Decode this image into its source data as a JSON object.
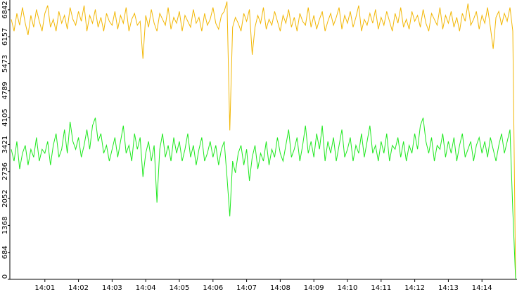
{
  "chart_data": {
    "type": "line",
    "categories": [
      null,
      null,
      null,
      null,
      null,
      null,
      null,
      null,
      null,
      null,
      null,
      null,
      "14:01",
      null,
      null,
      null,
      null,
      null,
      null,
      null,
      null,
      null,
      null,
      null,
      "14:02",
      null,
      null,
      null,
      null,
      null,
      null,
      null,
      null,
      null,
      null,
      null,
      "14:03",
      null,
      null,
      null,
      null,
      null,
      null,
      null,
      null,
      null,
      null,
      null,
      "14:04",
      null,
      null,
      null,
      null,
      null,
      null,
      null,
      null,
      null,
      null,
      null,
      "14:05",
      null,
      null,
      null,
      null,
      null,
      null,
      null,
      null,
      null,
      null,
      null,
      "14:06",
      null,
      null,
      null,
      null,
      null,
      null,
      null,
      null,
      null,
      null,
      null,
      "14:07",
      null,
      null,
      null,
      null,
      null,
      null,
      null,
      null,
      null,
      null,
      null,
      "14:08",
      null,
      null,
      null,
      null,
      null,
      null,
      null,
      null,
      null,
      null,
      null,
      "14:09",
      null,
      null,
      null,
      null,
      null,
      null,
      null,
      null,
      null,
      null,
      null,
      "14:10",
      null,
      null,
      null,
      null,
      null,
      null,
      null,
      null,
      null,
      null,
      null,
      "14:11",
      null,
      null,
      null,
      null,
      null,
      null,
      null,
      null,
      null,
      null,
      null,
      "14:12",
      null,
      null,
      null,
      null,
      null,
      null,
      null,
      null,
      null,
      null,
      null,
      "14:13",
      null,
      null,
      null,
      null,
      null,
      null,
      null,
      null,
      null,
      null,
      null,
      "14:14",
      null,
      null,
      null,
      null,
      null,
      null,
      null,
      null,
      null,
      null,
      null,
      null
    ],
    "series": [
      {
        "color": "#f2b705",
        "values": [
          6600,
          6300,
          6750,
          6450,
          6900,
          6500,
          6200,
          6700,
          6400,
          6850,
          6550,
          6300,
          6750,
          6950,
          6400,
          6600,
          6300,
          6800,
          6500,
          6700,
          6350,
          6900,
          6600,
          6450,
          6800,
          6550,
          6950,
          6300,
          6700,
          6500,
          6850,
          6400,
          6650,
          6300,
          6750,
          6550,
          6450,
          6800,
          6350,
          6700,
          6500,
          6900,
          6300,
          6600,
          6750,
          6450,
          6550,
          5600,
          6700,
          6400,
          6850,
          6500,
          6300,
          6750,
          6600,
          6450,
          6900,
          6350,
          6650,
          6500,
          6800,
          6300,
          6700,
          6550,
          6400,
          6850,
          6500,
          6650,
          6300,
          6750,
          6450,
          6600,
          6900,
          6500,
          6350,
          6700,
          6800,
          7050,
          3780,
          6400,
          6650,
          6500,
          6300,
          6750,
          6550,
          6850,
          5700,
          6400,
          6700,
          6500,
          6900,
          6350,
          6600,
          6450,
          6800,
          6550,
          6300,
          6700,
          6500,
          6850,
          6400,
          6650,
          6300,
          6750,
          6550,
          6450,
          6900,
          6400,
          6700,
          6350,
          6600,
          6800,
          6300,
          6550,
          6750,
          6450,
          6650,
          6900,
          6350,
          6700,
          6500,
          6800,
          6400,
          6650,
          6950,
          6300,
          6600,
          6450,
          6750,
          6500,
          6850,
          6350,
          6650,
          6450,
          6800,
          6550,
          6300,
          6750,
          6500,
          6900,
          6400,
          6600,
          6350,
          6800,
          6550,
          6700,
          6400,
          6850,
          6500,
          6300,
          6750,
          6600,
          6450,
          6900,
          6350,
          6700,
          6500,
          6800,
          6400,
          6650,
          6300,
          6750,
          6550,
          7000,
          6450,
          6600,
          6800,
          6350,
          6700,
          6500,
          6900,
          6400,
          5850,
          6650,
          6800,
          6450,
          6750,
          6550,
          6900,
          6300,
          0
        ]
      },
      {
        "color": "#1ee81e",
        "values": [
          3300,
          3000,
          3500,
          2800,
          3200,
          3400,
          2900,
          3300,
          3100,
          3600,
          3000,
          3300,
          3200,
          3500,
          2900,
          3400,
          3700,
          3100,
          3300,
          3800,
          3200,
          4000,
          3500,
          3300,
          3600,
          3100,
          3400,
          3800,
          3300,
          3900,
          4100,
          3500,
          3700,
          3200,
          3400,
          3000,
          3300,
          3600,
          3100,
          3500,
          3900,
          3200,
          3400,
          3000,
          3700,
          3300,
          3600,
          2600,
          3200,
          3500,
          3000,
          3400,
          1950,
          3300,
          3700,
          3100,
          3400,
          3000,
          3600,
          3200,
          3500,
          3000,
          3300,
          3700,
          3100,
          3400,
          2900,
          3300,
          3600,
          3000,
          3200,
          3500,
          3100,
          3400,
          2900,
          3300,
          3500,
          2600,
          1600,
          3000,
          2700,
          3200,
          3400,
          2900,
          3300,
          2500,
          3100,
          3400,
          2800,
          3200,
          3000,
          3500,
          2900,
          3300,
          3100,
          3600,
          3200,
          3000,
          3400,
          3800,
          3100,
          3300,
          3600,
          3000,
          3400,
          3900,
          3200,
          3500,
          3100,
          3700,
          3300,
          3900,
          3000,
          3500,
          3200,
          3600,
          3000,
          3400,
          3800,
          3100,
          3300,
          3600,
          3000,
          3400,
          3200,
          3700,
          3100,
          3500,
          3900,
          3200,
          3400,
          3000,
          3500,
          3200,
          3700,
          3000,
          3400,
          3300,
          3600,
          3100,
          3500,
          3000,
          3400,
          3200,
          3700,
          3300,
          3900,
          4100,
          3500,
          3200,
          3600,
          3000,
          3400,
          3300,
          3700,
          3100,
          3500,
          3200,
          3600,
          3000,
          3400,
          3700,
          3100,
          3300,
          3500,
          3000,
          3400,
          3600,
          3200,
          3500,
          3100,
          3600,
          3300,
          3000,
          3400,
          3700,
          3200,
          3500,
          3800,
          1750,
          0
        ]
      }
    ],
    "ylim": [
      0,
      7090
    ],
    "yticks": [
      0,
      684,
      1368,
      2052,
      2736,
      3421,
      4105,
      4789,
      5473,
      6157,
      6842
    ]
  }
}
